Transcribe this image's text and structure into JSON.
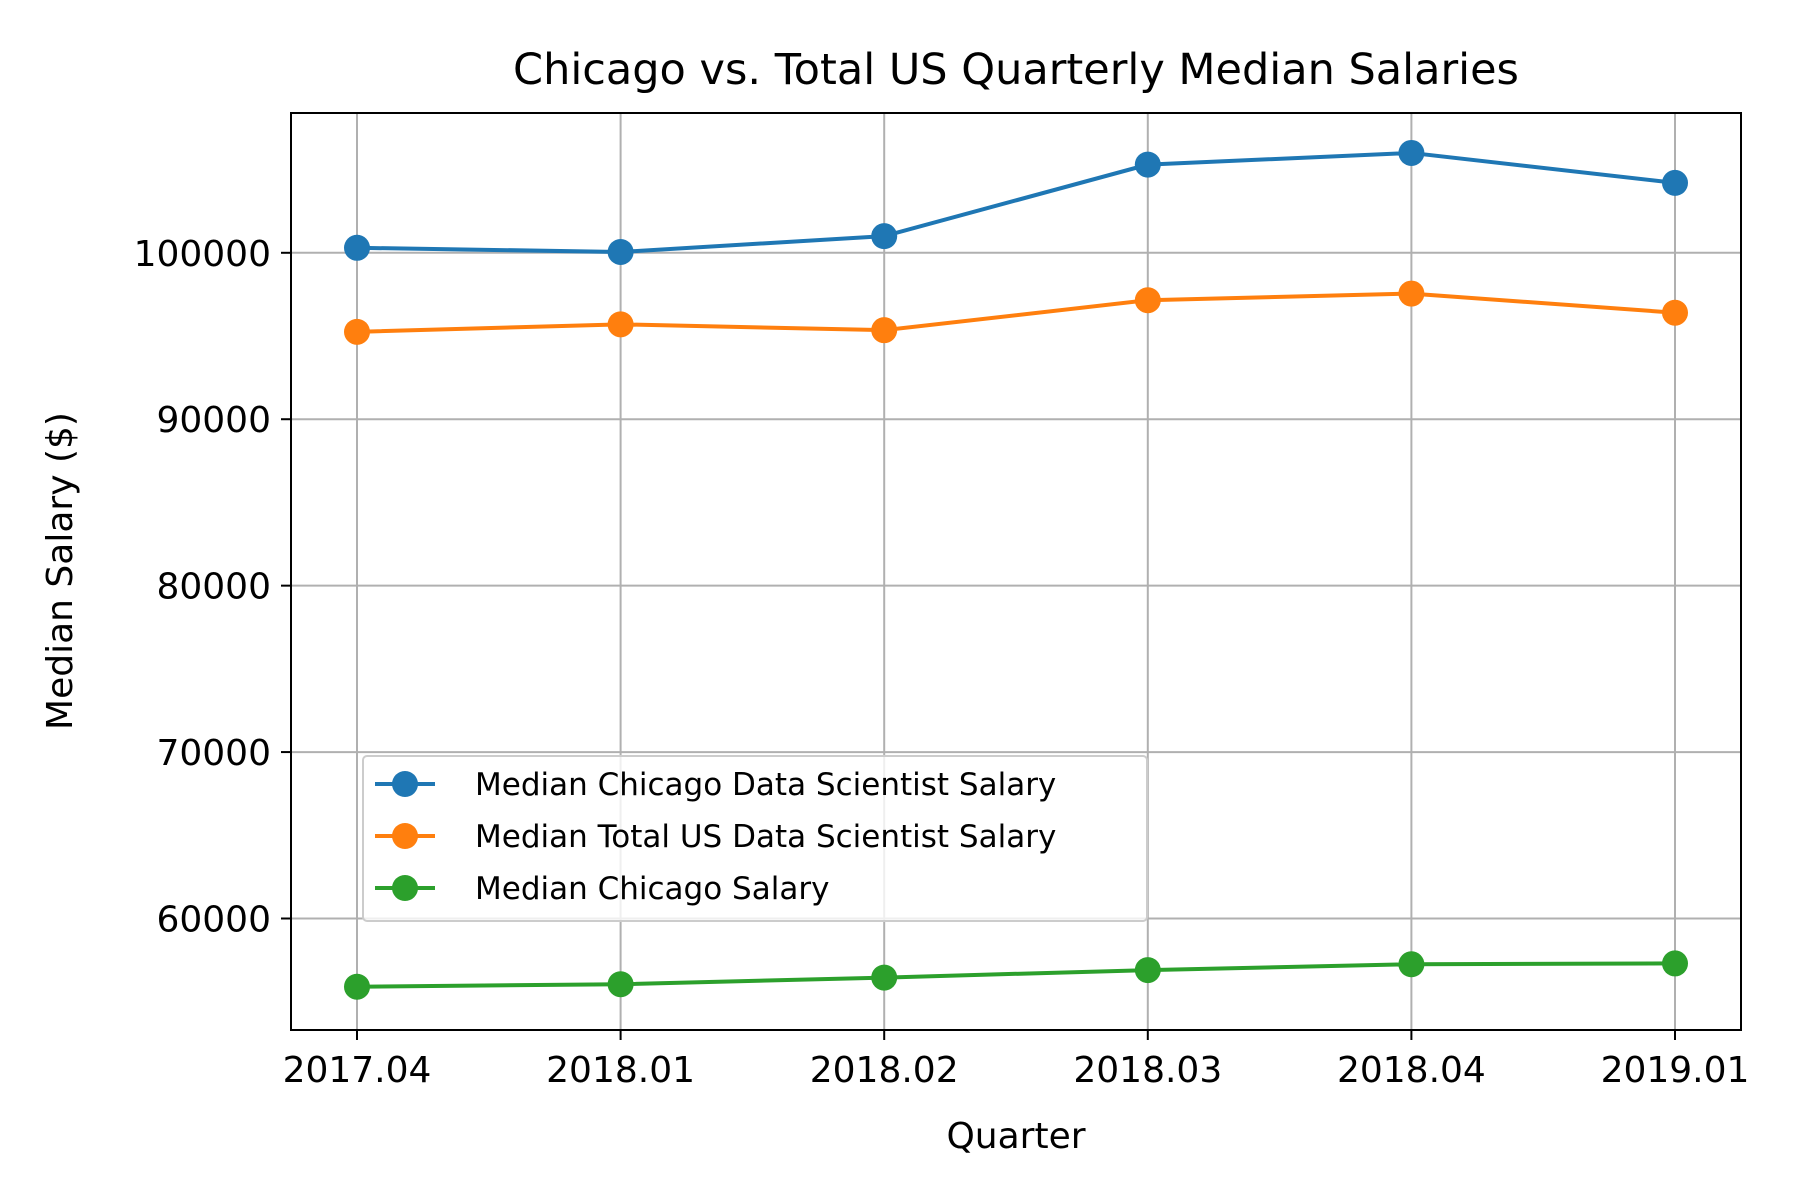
{
  "chart_data": {
    "type": "line",
    "title": "Chicago vs. Total US Quarterly Median Salaries",
    "xlabel": "Quarter",
    "ylabel": "Median Salary ($)",
    "categories": [
      "2017.04",
      "2018.01",
      "2018.02",
      "2018.03",
      "2018.04",
      "2019.01"
    ],
    "ylim": [
      53300,
      108400
    ],
    "yticks": [
      60000,
      70000,
      80000,
      90000,
      100000
    ],
    "ytick_labels": [
      "60000",
      "70000",
      "80000",
      "90000",
      "100000"
    ],
    "grid": true,
    "legend_position": "lower-left",
    "series": [
      {
        "name": "Median Chicago Data Scientist Salary",
        "color": "#1f77b4",
        "values": [
          100300,
          100050,
          101000,
          105300,
          106000,
          104200
        ]
      },
      {
        "name": "Median Total US Data Scientist Salary",
        "color": "#ff7f0e",
        "values": [
          95250,
          95700,
          95350,
          97150,
          97550,
          96400
        ]
      },
      {
        "name": "Median Chicago Salary",
        "color": "#2ca02c",
        "values": [
          55900,
          56050,
          56450,
          56900,
          57250,
          57300
        ]
      }
    ]
  }
}
